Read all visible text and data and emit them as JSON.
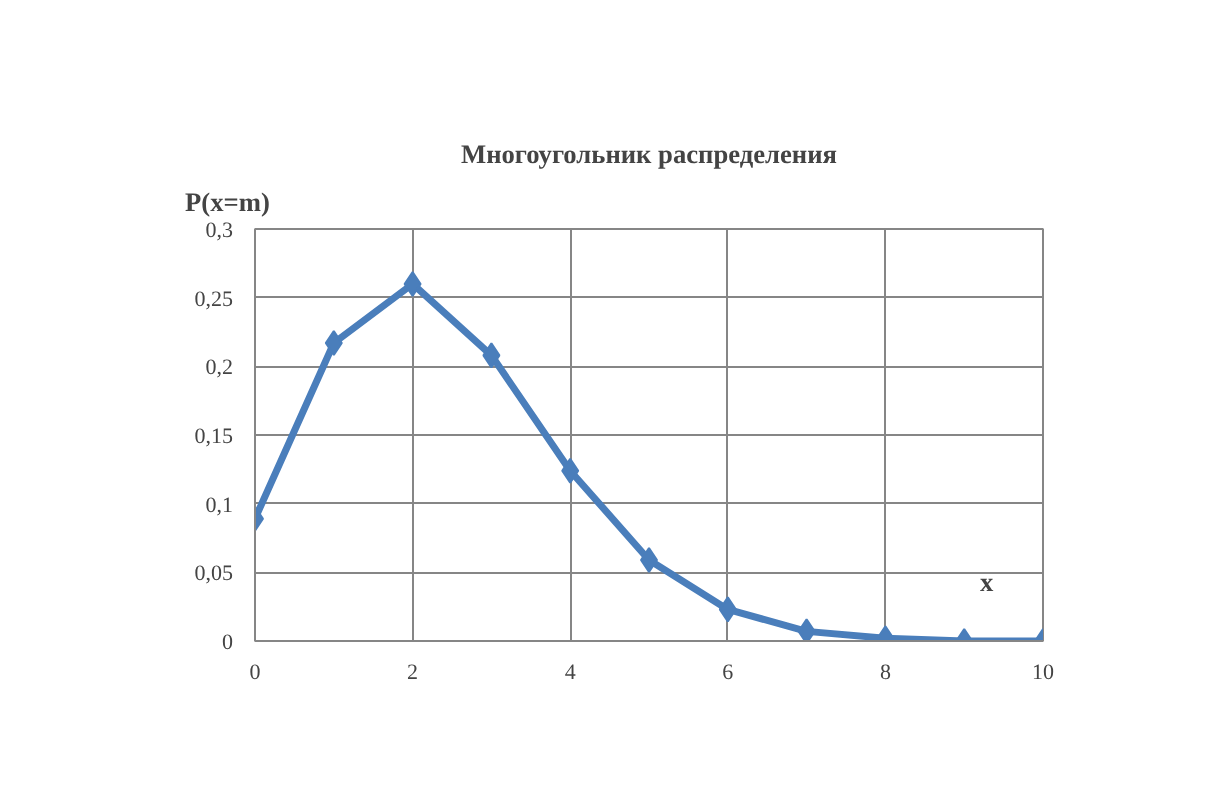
{
  "chart_data": {
    "type": "line",
    "title": "Многоугольник распределения",
    "ylabel": "P(x=m)",
    "xlabel": "x",
    "x": [
      0,
      1,
      2,
      3,
      4,
      5,
      6,
      7,
      8,
      9,
      10
    ],
    "series": [
      {
        "color": "#4a7ebb",
        "values": [
          0.089,
          0.217,
          0.26,
          0.208,
          0.124,
          0.059,
          0.023,
          0.007,
          0.002,
          0,
          0
        ]
      }
    ],
    "xlim": [
      0,
      10
    ],
    "xticks": [
      0,
      2,
      4,
      6,
      8,
      10
    ],
    "ylim": [
      0,
      0.3
    ],
    "yticks": [
      {
        "value": 0,
        "label": "0"
      },
      {
        "value": 0.05,
        "label": "0,05"
      },
      {
        "value": 0.1,
        "label": "0,1"
      },
      {
        "value": 0.15,
        "label": "0,15"
      },
      {
        "value": 0.2,
        "label": "0,2"
      },
      {
        "value": 0.25,
        "label": "0,25"
      },
      {
        "value": 0.3,
        "label": "0,3"
      }
    ],
    "grid": true,
    "marker": "diamond",
    "line_style": "solid"
  }
}
